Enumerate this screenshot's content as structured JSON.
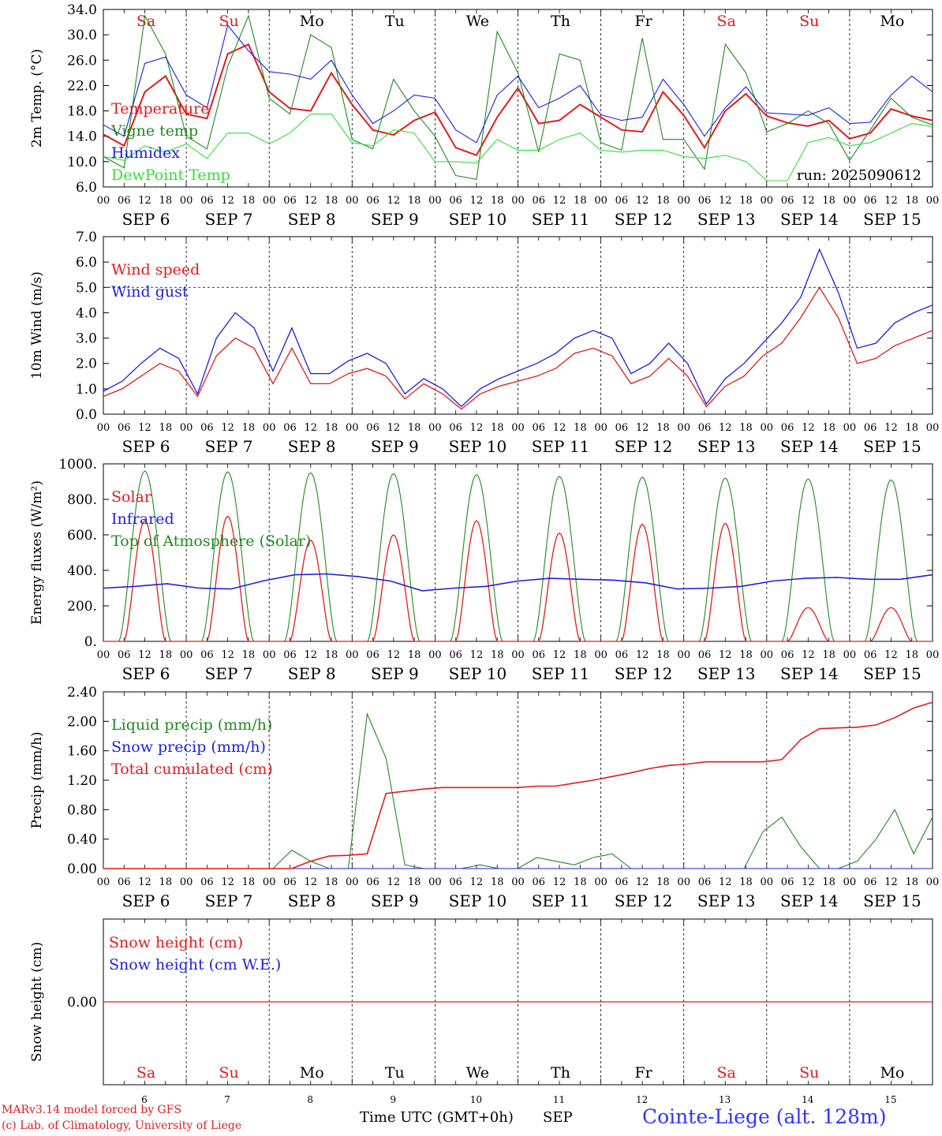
{
  "footer": {
    "model": "MARv3.14 model forced by GFS",
    "credit": "(c) Lab. of Climatology, University of Liege",
    "xlabel": "Time UTC (GMT+0h)",
    "month": "SEP",
    "station": "Cointe-Liege (alt. 128m)"
  },
  "days": [
    {
      "abbr": "Sa",
      "date": "SEP  6",
      "num": "6",
      "weekend": true
    },
    {
      "abbr": "Su",
      "date": "SEP  7",
      "num": "7",
      "weekend": true
    },
    {
      "abbr": "Mo",
      "date": "SEP  8",
      "num": "8",
      "weekend": false
    },
    {
      "abbr": "Tu",
      "date": "SEP  9",
      "num": "9",
      "weekend": false
    },
    {
      "abbr": "We",
      "date": "SEP 10",
      "num": "10",
      "weekend": false
    },
    {
      "abbr": "Th",
      "date": "SEP 11",
      "num": "11",
      "weekend": false
    },
    {
      "abbr": "Fr",
      "date": "SEP 12",
      "num": "12",
      "weekend": false
    },
    {
      "abbr": "Sa",
      "date": "SEP 13",
      "num": "13",
      "weekend": true
    },
    {
      "abbr": "Su",
      "date": "SEP 14",
      "num": "14",
      "weekend": true
    },
    {
      "abbr": "Mo",
      "date": "SEP 15",
      "num": "15",
      "weekend": false
    }
  ],
  "hour_ticks": [
    "00",
    "06",
    "12",
    "18"
  ],
  "colors": {
    "red": "#e31a1c",
    "green": "#1f8a1f",
    "blue": "#1e1ee0",
    "lightgreen": "#33e033",
    "weekend": "#e31a1c",
    "station": "#3333ff"
  },
  "chart_data": [
    {
      "type": "line",
      "ylabel": "2m Temp. (°C)",
      "ylim": [
        6,
        34
      ],
      "yticks": [
        "34.0",
        "30.0",
        "26.0",
        "22.0",
        "18.0",
        "14.0",
        "10.0",
        "6.0"
      ],
      "annotation": "run: 2025090612",
      "x_hours_start": 0,
      "step_hours": 6,
      "series": [
        {
          "name": "Temperature",
          "color": "red",
          "values": [
            14.3,
            12.5,
            21,
            23.5,
            17.5,
            16.8,
            27,
            28.5,
            21,
            18.4,
            18,
            24,
            19,
            15,
            14.2,
            16.5,
            17.8,
            12.2,
            11,
            17,
            21.6,
            16,
            16.5,
            19,
            17,
            15,
            14.7,
            21,
            17.3,
            12.2,
            18,
            20.7,
            17.2,
            16.1,
            15.6,
            16.5,
            13.6,
            14.5,
            18.3,
            17.2,
            16.5
          ]
        },
        {
          "name": "Vigne temp",
          "color": "green",
          "values": [
            10.8,
            9,
            33,
            27,
            14,
            12,
            25,
            33,
            20,
            17.5,
            30,
            28,
            13.5,
            12,
            23,
            18,
            14,
            7.8,
            7.2,
            30.5,
            24,
            11.5,
            27,
            26,
            13,
            11.8,
            29.5,
            13.5,
            13.5,
            8.8,
            28.5,
            24,
            14.7,
            16,
            18,
            16,
            10.2,
            15,
            20,
            17,
            15.8
          ]
        },
        {
          "name": "Humidex",
          "color": "blue",
          "values": [
            15.8,
            14,
            25.5,
            26.5,
            20.5,
            18.5,
            31.5,
            27.5,
            24.2,
            23.8,
            23,
            26,
            20.5,
            16,
            18,
            20.5,
            20,
            15,
            13,
            20.5,
            23.5,
            18.5,
            20,
            22,
            17.4,
            16.5,
            17,
            23,
            19,
            14,
            18.5,
            21.8,
            17.7,
            17.5,
            17.3,
            18.5,
            16,
            16.2,
            20.5,
            23.5,
            21
          ]
        },
        {
          "name": "DewPoint Temp",
          "color": "lightgreen",
          "values": [
            10.8,
            10.2,
            12.5,
            11.5,
            12.8,
            10.5,
            14.5,
            14.5,
            12.8,
            14.5,
            17.5,
            17.5,
            13,
            12.5,
            15,
            14.5,
            10,
            10,
            9.8,
            13.5,
            11.8,
            11.8,
            13.5,
            14.5,
            11.8,
            11.5,
            11.8,
            11.8,
            10.8,
            10.5,
            11,
            10,
            7,
            7,
            13,
            13.8,
            12.5,
            13,
            14.5,
            16,
            15.5
          ]
        }
      ]
    },
    {
      "type": "line",
      "ylabel": "10m Wind (m/s)",
      "ylim": [
        0,
        7
      ],
      "yticks": [
        "7.0",
        "6.0",
        "5.0",
        "4.0",
        "3.0",
        "2.0",
        "1.0",
        "0.0"
      ],
      "reference_line": 5,
      "x_hours_start": 0,
      "step_hours": 6,
      "series": [
        {
          "name": "Wind speed",
          "color": "red",
          "values": [
            0.7,
            1.0,
            1.5,
            2.0,
            1.7,
            0.7,
            2.3,
            3.0,
            2.6,
            1.2,
            2.6,
            1.2,
            1.2,
            1.6,
            1.8,
            1.5,
            0.6,
            1.2,
            0.8,
            0.2,
            0.8,
            1.1,
            1.3,
            1.5,
            1.8,
            2.4,
            2.6,
            2.3,
            1.2,
            1.5,
            2.2,
            1.5,
            0.3,
            1.1,
            1.5,
            2.3,
            2.8,
            3.8,
            5.0,
            3.8,
            2.0,
            2.2,
            2.7,
            3.0,
            3.3
          ]
        },
        {
          "name": "Wind gust",
          "color": "blue",
          "values": [
            0.9,
            1.3,
            2.0,
            2.6,
            2.2,
            0.8,
            3.0,
            4.0,
            3.4,
            1.7,
            3.4,
            1.6,
            1.6,
            2.1,
            2.4,
            2.0,
            0.8,
            1.4,
            1.0,
            0.3,
            1.0,
            1.4,
            1.7,
            2.0,
            2.4,
            3.0,
            3.3,
            3.0,
            1.6,
            2.0,
            2.8,
            2.0,
            0.4,
            1.4,
            2.0,
            2.8,
            3.6,
            4.6,
            6.5,
            4.8,
            2.6,
            2.8,
            3.6,
            4.0,
            4.3
          ]
        }
      ]
    },
    {
      "type": "line",
      "ylabel": "Energy fluxes (W/m²)",
      "ylim": [
        0,
        1000
      ],
      "yticks": [
        "1000.",
        "800.",
        "600.",
        "400.",
        "200.",
        "0."
      ],
      "series": [
        {
          "name": "Solar",
          "color": "red",
          "peaks": [
            680,
            705,
            570,
            600,
            680,
            610,
            660,
            665,
            190,
            190
          ]
        },
        {
          "name": "Infrared",
          "color": "blue",
          "values": [
            300,
            310,
            325,
            300,
            295,
            340,
            375,
            380,
            365,
            340,
            285,
            300,
            310,
            340,
            355,
            350,
            345,
            330,
            295,
            300,
            310,
            340,
            355,
            360,
            350,
            350,
            375
          ]
        },
        {
          "name": "Top of Atmosphere (Solar)",
          "color": "green",
          "peaks": [
            960,
            955,
            950,
            945,
            940,
            930,
            925,
            920,
            915,
            910
          ]
        }
      ]
    },
    {
      "type": "line",
      "ylabel": "Precip (mm/h)",
      "ylim": [
        0,
        2.4
      ],
      "yticks": [
        "2.40",
        "2.00",
        "1.60",
        "1.20",
        "0.80",
        "0.40",
        "0.00"
      ],
      "series": [
        {
          "name": "Liquid precip (mm/h)",
          "color": "green",
          "values": [
            0,
            0,
            0,
            0,
            0,
            0,
            0,
            0,
            0,
            0,
            0.25,
            0.1,
            0,
            0,
            2.1,
            1.5,
            0.05,
            0,
            0,
            0,
            0.05,
            0,
            0,
            0.15,
            0.1,
            0.05,
            0.15,
            0.2,
            0,
            0,
            0,
            0,
            0,
            0,
            0,
            0.5,
            0.7,
            0.3,
            0,
            0,
            0.1,
            0.4,
            0.8,
            0.2,
            0.7
          ]
        },
        {
          "name": "Snow precip (mm/h)",
          "color": "blue",
          "values": [
            0,
            0,
            0,
            0,
            0,
            0,
            0,
            0,
            0,
            0,
            0,
            0,
            0,
            0,
            0,
            0,
            0,
            0,
            0,
            0,
            0,
            0,
            0,
            0,
            0,
            0,
            0,
            0,
            0,
            0,
            0,
            0,
            0,
            0,
            0,
            0,
            0,
            0,
            0,
            0,
            0,
            0,
            0,
            0,
            0
          ]
        },
        {
          "name": "Total cumulated (cm)",
          "color": "red",
          "values": [
            0,
            0,
            0,
            0,
            0,
            0,
            0,
            0,
            0,
            0,
            0,
            0.1,
            0.17,
            0.18,
            0.2,
            1.02,
            1.05,
            1.08,
            1.1,
            1.1,
            1.1,
            1.1,
            1.1,
            1.12,
            1.12,
            1.16,
            1.2,
            1.25,
            1.3,
            1.36,
            1.4,
            1.42,
            1.45,
            1.45,
            1.45,
            1.45,
            1.48,
            1.75,
            1.9,
            1.91,
            1.92,
            1.95,
            2.05,
            2.18,
            2.26
          ]
        }
      ]
    },
    {
      "type": "line",
      "ylabel": "Snow height (cm)",
      "yticks": [
        "0.00"
      ],
      "series": [
        {
          "name": "Snow height (cm)",
          "color": "red",
          "values": [
            0,
            0
          ]
        },
        {
          "name": "Snow height (cm W.E.)",
          "color": "blue",
          "values": [
            0,
            0
          ]
        }
      ]
    }
  ]
}
